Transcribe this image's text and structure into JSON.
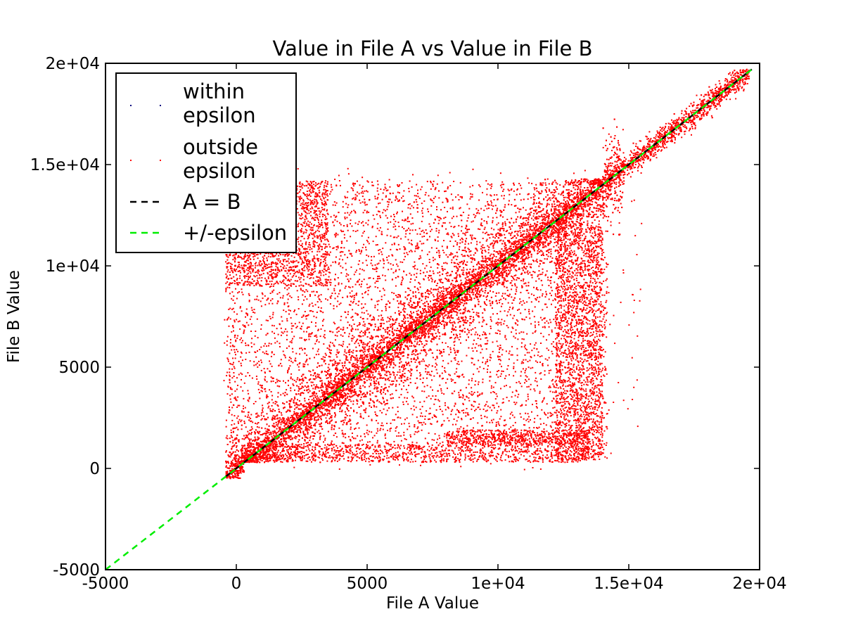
{
  "chart_data": {
    "type": "scatter",
    "title": "Value in File A vs Value in File B",
    "xlabel": "File A Value",
    "ylabel": "File B Value",
    "xlim": [
      -5000,
      20000
    ],
    "ylim": [
      -5000,
      20000
    ],
    "x_ticks": [
      {
        "value": -5000,
        "label": "-5000"
      },
      {
        "value": 0,
        "label": "0"
      },
      {
        "value": 5000,
        "label": "5000"
      },
      {
        "value": 10000,
        "label": "1e+04"
      },
      {
        "value": 15000,
        "label": "1.5e+04"
      },
      {
        "value": 20000,
        "label": "2e+04"
      }
    ],
    "y_ticks": [
      {
        "value": -5000,
        "label": "-5000"
      },
      {
        "value": 0,
        "label": "0"
      },
      {
        "value": 5000,
        "label": "5000"
      },
      {
        "value": 10000,
        "label": "1e+04"
      },
      {
        "value": 15000,
        "label": "1.5e+04"
      },
      {
        "value": 20000,
        "label": "2e+04"
      }
    ],
    "grid": false,
    "legend_position": "upper-left",
    "series": [
      {
        "name": "within epsilon",
        "kind": "scatter",
        "color": "#000080",
        "points": []
      },
      {
        "name": "outside epsilon",
        "kind": "scatter",
        "color": "#ff0000",
        "point_clouds": [
          {
            "region": "main-block",
            "x_range": [
              -400,
              14200
            ],
            "y_range": [
              500,
              14200
            ],
            "count": 5200
          },
          {
            "region": "diagonal-band",
            "x_range": [
              -400,
              14800
            ],
            "band_halfwidth": 1700,
            "count": 6500
          },
          {
            "region": "diagonal-band-tight",
            "x_range": [
              -400,
              19600
            ],
            "band_halfwidth": 500,
            "count": 5200
          },
          {
            "region": "upper-left-cluster",
            "x_range": [
              -400,
              3500
            ],
            "y_range": [
              9000,
              14200
            ],
            "count": 1700
          },
          {
            "region": "right-column",
            "x_range": [
              12200,
              14000
            ],
            "y_range": [
              400,
              12000
            ],
            "count": 1900
          },
          {
            "region": "lower-right-band",
            "x_range": [
              8000,
              13500
            ],
            "y_range": [
              1200,
              1900
            ],
            "count": 600
          },
          {
            "region": "bottom-edge",
            "x_range": [
              200,
              13500
            ],
            "y_range": [
              300,
              1200
            ],
            "count": 900
          },
          {
            "region": "sparse-outliers",
            "x_range": [
              -500,
              15500
            ],
            "y_range": [
              -100,
              14800
            ],
            "count": 450
          }
        ]
      },
      {
        "name": "A = B",
        "kind": "line",
        "style": "dashed",
        "color": "#000000",
        "x": [
          -400,
          19700
        ],
        "y": [
          -400,
          19700
        ]
      },
      {
        "name": "+/-epsilon",
        "kind": "line",
        "style": "dashed",
        "color": "#00ee00",
        "x": [
          -5000,
          19700
        ],
        "y": [
          -5000,
          19700
        ]
      }
    ],
    "legend": [
      {
        "label_lines": [
          "within",
          "epsilon"
        ],
        "marker": "dots",
        "color": "#000080"
      },
      {
        "label_lines": [
          "outside",
          "epsilon"
        ],
        "marker": "dots",
        "color": "#ff0000"
      },
      {
        "label_lines": [
          "A = B"
        ],
        "marker": "dash",
        "color": "#000000"
      },
      {
        "label_lines": [
          "+/-epsilon"
        ],
        "marker": "dash",
        "color": "#00ee00"
      }
    ]
  }
}
